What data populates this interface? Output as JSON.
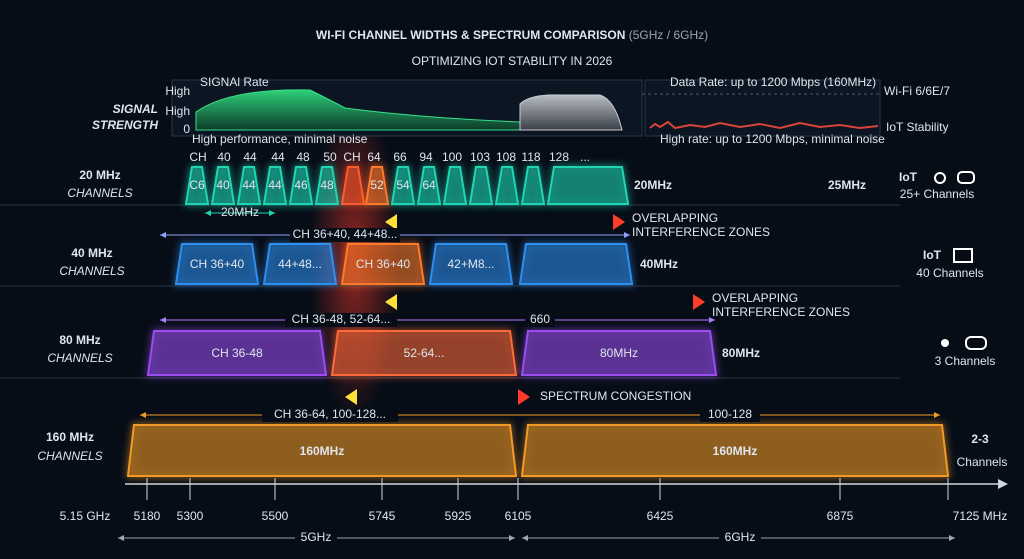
{
  "header": {
    "title": "WI-FI CHANNEL WIDTHS & SPECTRUM COMPARISON",
    "title_suffix": "(5GHz / 6GHz)",
    "subtitle": "OPTIMIZING IOT STABILITY IN 2026"
  },
  "signal": {
    "label": [
      "SIGNAL",
      "STRENGTH"
    ],
    "rate_title": "SIGNAl Rate",
    "y_labels": [
      "High",
      "High",
      "0"
    ],
    "left_note": "High performance, minimal noise",
    "data_rate": "Data Rate: up to 1200 Mbps (160MHz)",
    "wifi": "Wi-Fi 6/6E/7",
    "iot": "IoT Stability",
    "right_note": "High rate: up to 1200 Mbps, minimal noise"
  },
  "rows": [
    {
      "label": "20 MHz",
      "sub": "CHANNELS",
      "top_labels": [
        "CH",
        "40",
        "44",
        "44",
        "48",
        "50",
        "CH",
        "64",
        "66",
        "94",
        "100",
        "103",
        "108",
        "118",
        "128",
        "..."
      ],
      "blocks": [
        "C6",
        "40",
        "44",
        "44",
        "46",
        "48",
        "52",
        "54",
        "64"
      ],
      "end_label": "20MHz",
      "extra": "25MHz",
      "icon_text": "IoT",
      "count": "25+ Channels"
    },
    {
      "label": "40 MHz",
      "sub": "CHANNELS",
      "blocks": [
        "CH 36+40",
        "44+48...",
        "CH 36+40",
        "42+M8..."
      ],
      "end_label": "40MHz",
      "icon_text": "IoT",
      "count": "40 Channels"
    },
    {
      "label": "80 MHz",
      "sub": "CHANNELS",
      "blocks": [
        "CH 36-48",
        "52-64...",
        "80MHz"
      ],
      "end_label": "80MHz",
      "count": "3 Channels"
    },
    {
      "label": "160 MHz",
      "sub": "CHANNELS",
      "blocks": [
        "160MHz",
        "160MHz"
      ],
      "count": "2-3",
      "count_sub": "Channels"
    }
  ],
  "annotations": {
    "span_20": "20MHz",
    "overlap_1": [
      "OVERLAPPING",
      "INTERFERENCE ZONES"
    ],
    "span_40": "CH 36+40, 44+48...",
    "overlap_2": [
      "OVERLAPPING",
      "INTERFERENCE ZONES"
    ],
    "span_80": "CH 36-48, 52-64...",
    "span_80b": "660",
    "congestion": "SPECTRUM CONGESTION",
    "span_160": "CH 36-64, 100-128...",
    "span_160b": "100-128"
  },
  "axis": {
    "labels": [
      "5.15 GHz",
      "5180",
      "5300",
      "5500",
      "5745",
      "5925",
      "6105",
      "6425",
      "6875",
      "7125 MHz"
    ],
    "bands": [
      "5GHz",
      "6GHz"
    ]
  }
}
